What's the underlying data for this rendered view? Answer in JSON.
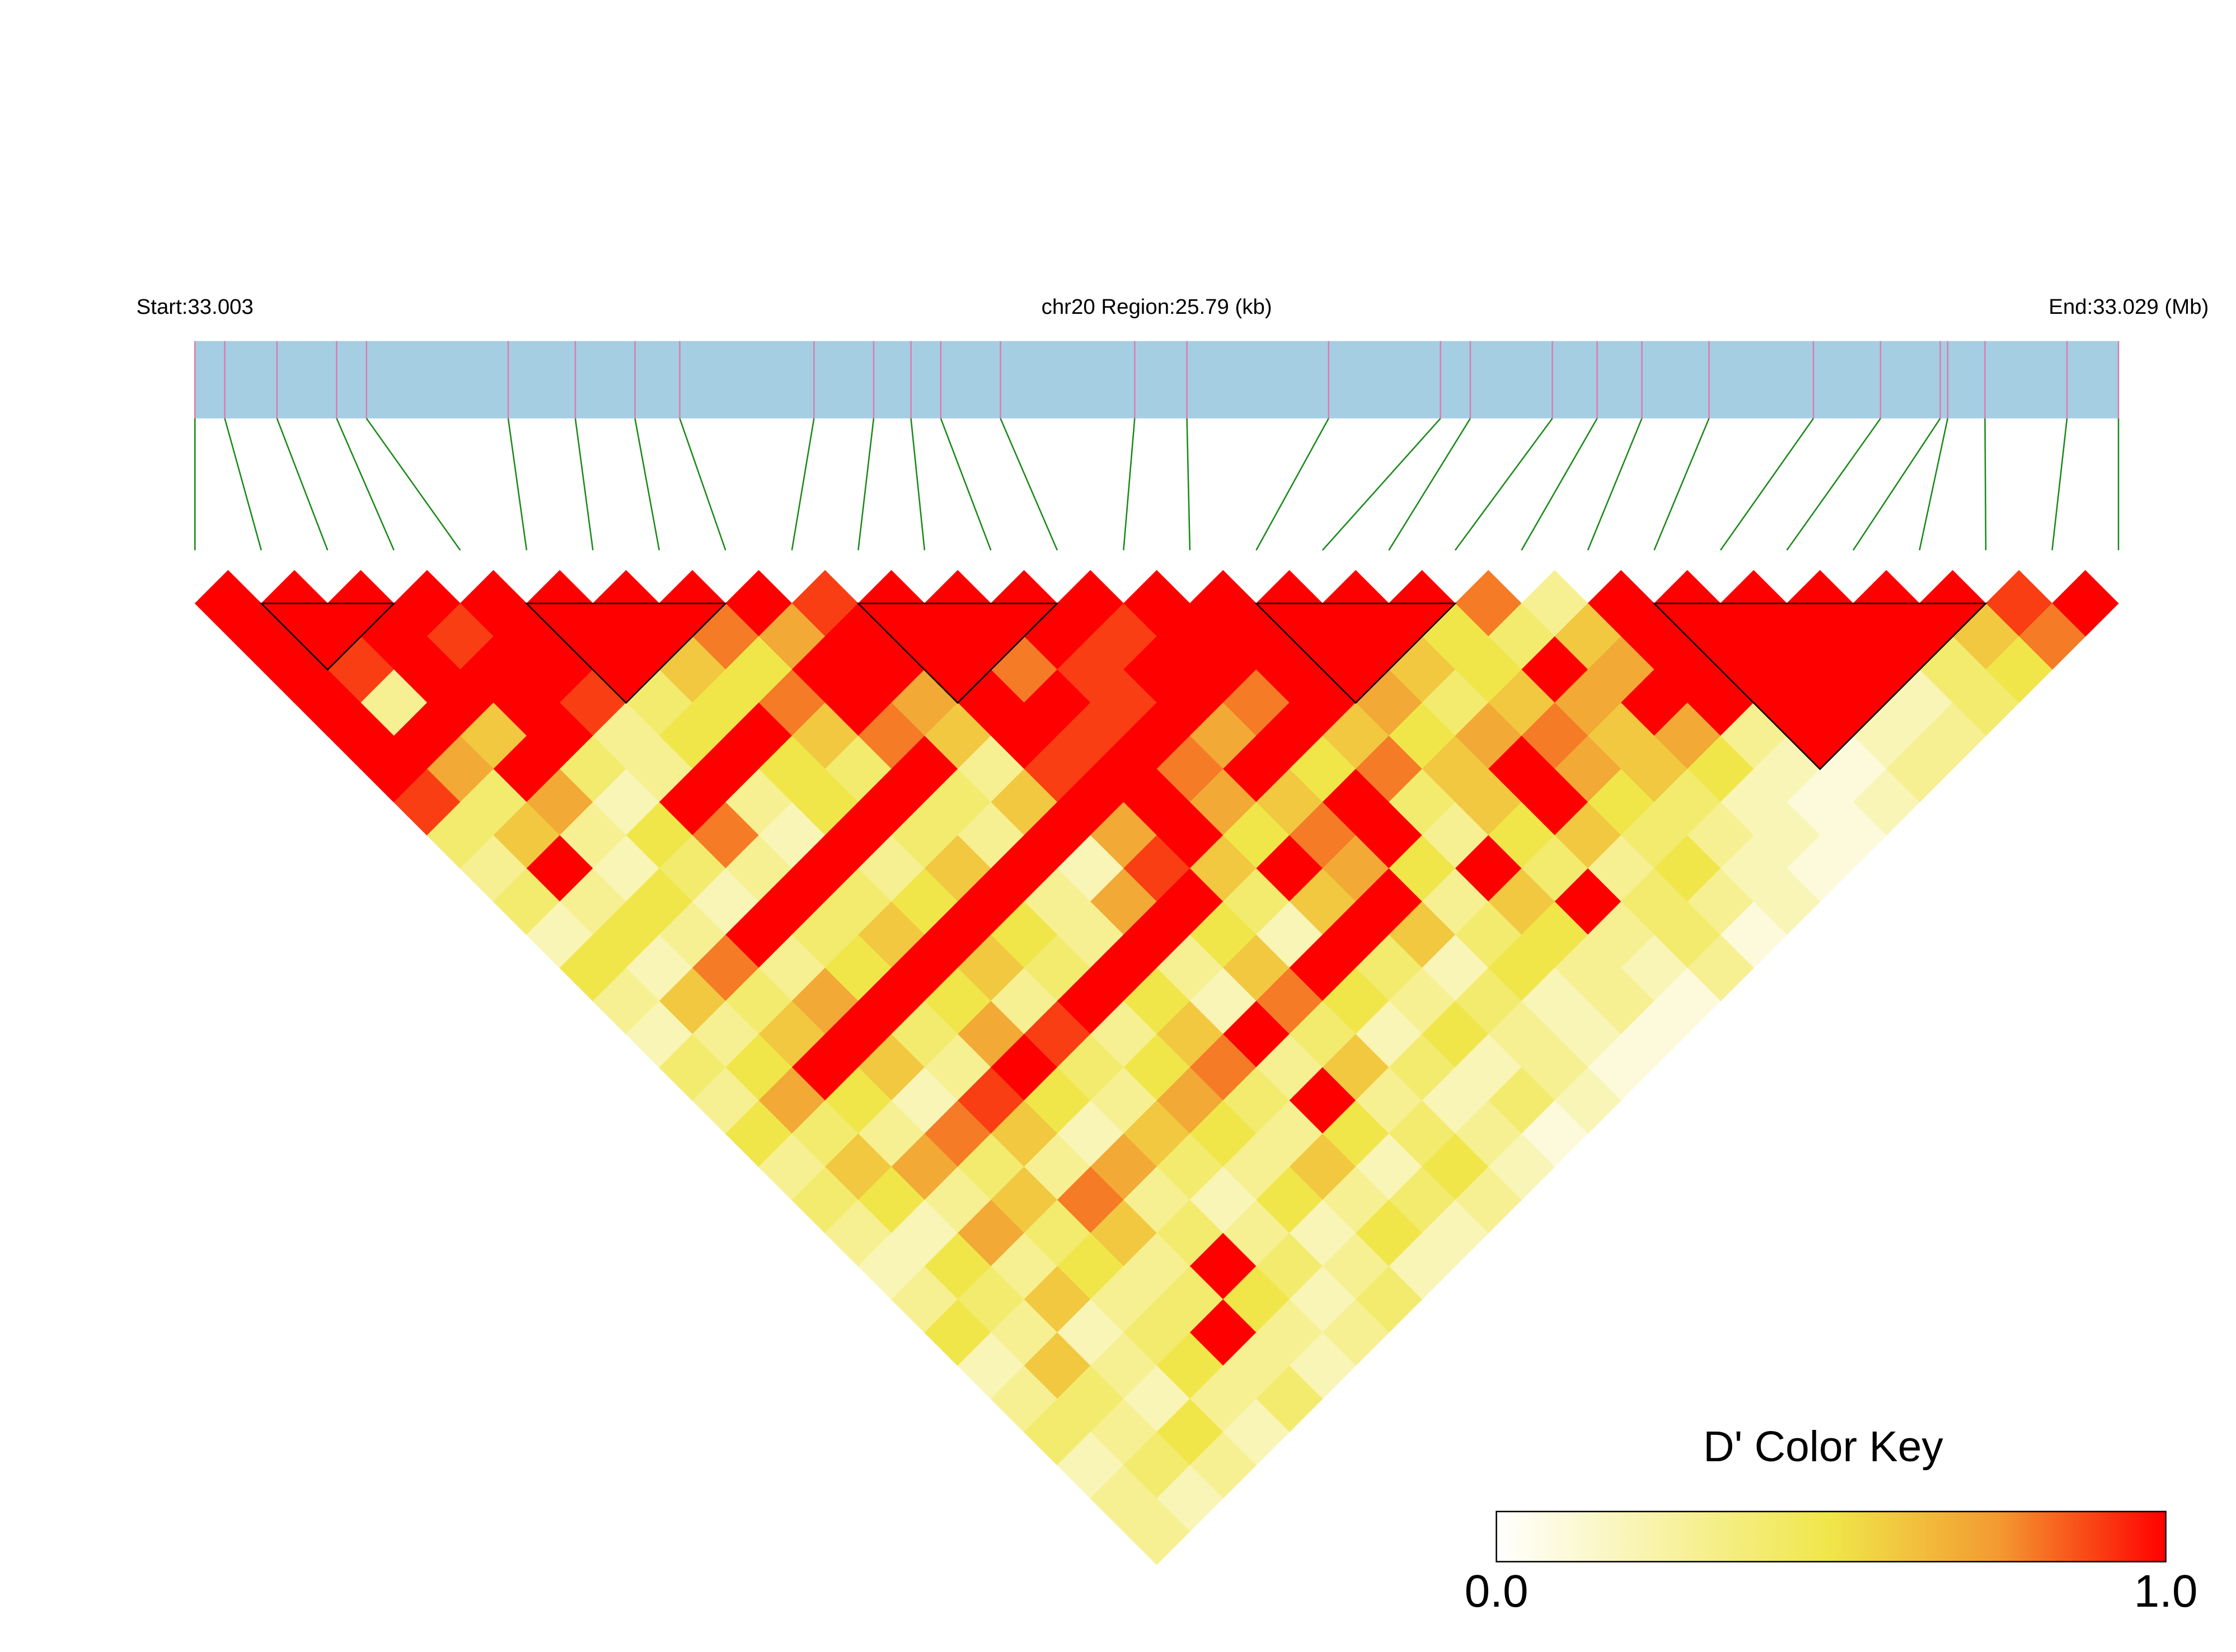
{
  "chart_data": {
    "type": "ld_heatmap",
    "start_label": "Start:33.003",
    "region_label": "chr20 Region:25.79 (kb)",
    "end_label": "End:33.029 (Mb)",
    "legend_title": "D' Color Key",
    "scale_lim": [
      0,
      1
    ],
    "scale_ticks": [
      {
        "value": 0,
        "label": "0.0"
      },
      {
        "value": 1,
        "label": "1.0"
      }
    ],
    "color_scale": [
      {
        "value": 0,
        "color": "#ffffff"
      },
      {
        "value": 0.5,
        "color": "#f0e64a"
      },
      {
        "value": 0.75,
        "color": "#f39a30"
      },
      {
        "value": 1,
        "color": "#ff0000"
      }
    ],
    "bar_color": "#a6cee3",
    "snp_line_color": "#d87fb0",
    "connector_color": "#1a8a1a",
    "block_outline_color": "#000000",
    "snp_positions": [
      33.003,
      33.0034,
      33.0041,
      33.0049,
      33.0053,
      33.0072,
      33.0081,
      33.0089,
      33.0095,
      33.0113,
      33.0121,
      33.0126,
      33.013,
      33.0138,
      33.0156,
      33.0163,
      33.0182,
      33.0197,
      33.0201,
      33.0212,
      33.0218,
      33.0224,
      33.0233,
      33.0247,
      33.0256,
      33.0264,
      33.0265,
      33.027,
      33.0281,
      33.02879
    ],
    "blocks": [
      [
        1,
        3
      ],
      [
        5,
        8
      ],
      [
        10,
        13
      ],
      [
        16,
        19
      ],
      [
        22,
        27
      ]
    ],
    "ld": [
      [
        1,
        1,
        1,
        1,
        1,
        1,
        1,
        1,
        1,
        0.9,
        1,
        1,
        1,
        1,
        1,
        1,
        1,
        1,
        1,
        0.8,
        0.3,
        1,
        1,
        1,
        1,
        1,
        1,
        0.9,
        1
      ],
      [
        1,
        1,
        1,
        0.9,
        1,
        1,
        1,
        0.8,
        0.7,
        1,
        1,
        1,
        1,
        0.9,
        1,
        1,
        1,
        1,
        0.5,
        0.4,
        0.6,
        1,
        1,
        1,
        1,
        1,
        0.6,
        0.8
      ],
      [
        1,
        0.9,
        1,
        1,
        1,
        1,
        0.6,
        0.5,
        1,
        1,
        1,
        0.8,
        0.9,
        1,
        1,
        1,
        1,
        0.6,
        0.5,
        1,
        0.7,
        1,
        1,
        1,
        1,
        0.4,
        0.5
      ],
      [
        1,
        0.3,
        1,
        1,
        0.9,
        0.4,
        0.5,
        0.8,
        1,
        0.7,
        1,
        1,
        0.9,
        1,
        0.8,
        1,
        0.7,
        0.4,
        0.6,
        0.7,
        1,
        1,
        1,
        1,
        0.2,
        0.4
      ],
      [
        1,
        1,
        0.6,
        1,
        0.3,
        0.5,
        1,
        0.6,
        0.8,
        0.6,
        1,
        0.9,
        1,
        0.7,
        1,
        0.6,
        0.5,
        0.7,
        0.8,
        0.6,
        0.7,
        0.3,
        1,
        0.2,
        0.3
      ],
      [
        1,
        0.7,
        1,
        0.4,
        0.3,
        1,
        0.5,
        0.4,
        1,
        0.3,
        0.9,
        1,
        0.8,
        1,
        0.5,
        0.8,
        0.6,
        1,
        0.7,
        0.6,
        0.5,
        0.2,
        0.1,
        0.3
      ],
      [
        0.9,
        0.4,
        0.7,
        0.2,
        1,
        0.3,
        0.5,
        1,
        0.4,
        0.6,
        1,
        1,
        0.7,
        0.6,
        1,
        0.4,
        0.6,
        1,
        0.5,
        0.4,
        0.2,
        0.1,
        0.2
      ],
      [
        0.4,
        0.6,
        0.3,
        0.5,
        0.8,
        0.2,
        1,
        0.4,
        0.3,
        1,
        0.7,
        1,
        0.5,
        0.8,
        1,
        0.3,
        0.5,
        0.6,
        0.4,
        0.3,
        0.2,
        0.1
      ],
      [
        0.3,
        1,
        0.2,
        0.4,
        0.3,
        1,
        0.3,
        0.6,
        1,
        0.2,
        0.9,
        0.6,
        1,
        0.7,
        0.5,
        1,
        0.4,
        0.3,
        0.5,
        0.2,
        0.1
      ],
      [
        0.4,
        0.3,
        0.5,
        0.2,
        1,
        0.4,
        0.5,
        1,
        0.3,
        0.7,
        1,
        0.4,
        0.6,
        1,
        0.3,
        0.6,
        1,
        0.4,
        0.3,
        0.2
      ],
      [
        0.2,
        0.5,
        0.3,
        1,
        0.4,
        0.6,
        1,
        0.5,
        0.3,
        1,
        0.5,
        0.2,
        1,
        0.6,
        0.4,
        0.5,
        0.3,
        0.4,
        0.1
      ],
      [
        0.5,
        0.2,
        0.8,
        0.3,
        0.5,
        1,
        0.6,
        0.4,
        1,
        0.3,
        0.6,
        1,
        0.4,
        0.2,
        0.5,
        0.3,
        0.2,
        0.3
      ],
      [
        0.3,
        0.6,
        0.4,
        0.7,
        1,
        0.5,
        0.3,
        1,
        0.5,
        0.2,
        0.8,
        0.5,
        0.3,
        0.4,
        0.2,
        0.3,
        0.1
      ],
      [
        0.2,
        0.3,
        0.6,
        1,
        0.4,
        0.7,
        0.9,
        0.3,
        0.6,
        1,
        0.4,
        0.2,
        0.5,
        0.3,
        0.2,
        0.1
      ],
      [
        0.4,
        0.5,
        1,
        0.6,
        0.3,
        1,
        0.4,
        0.5,
        0.8,
        0.3,
        0.6,
        0.4,
        0.2,
        0.3,
        0.1
      ],
      [
        0.3,
        0.7,
        0.5,
        0.2,
        0.9,
        0.5,
        0.3,
        0.7,
        0.4,
        1,
        0.3,
        0.2,
        0.4,
        0.2
      ],
      [
        0.5,
        0.4,
        0.3,
        0.8,
        0.6,
        0.2,
        0.6,
        0.5,
        0.3,
        0.5,
        0.4,
        0.3,
        0.1
      ],
      [
        0.3,
        0.6,
        0.7,
        0.4,
        0.3,
        0.7,
        0.4,
        0.3,
        0.6,
        0.2,
        0.5,
        0.2
      ],
      [
        0.4,
        0.5,
        0.3,
        0.6,
        0.8,
        0.3,
        0.2,
        0.5,
        0.3,
        0.4,
        0.3
      ],
      [
        0.3,
        0.2,
        0.7,
        0.4,
        0.6,
        0.4,
        0.3,
        0.2,
        0.5,
        0.2
      ],
      [
        0.2,
        0.5,
        0.3,
        0.5,
        0.3,
        1,
        0.4,
        0.3,
        0.2
      ],
      [
        0.3,
        0.4,
        0.6,
        0.3,
        0.4,
        0.5,
        0.2,
        0.4
      ],
      [
        0.5,
        0.3,
        0.2,
        0.4,
        1,
        0.3,
        0.3
      ],
      [
        0.2,
        0.6,
        0.3,
        0.5,
        0.3,
        0.2
      ],
      [
        0.3,
        0.4,
        0.2,
        0.3,
        0.4
      ],
      [
        0.4,
        0.3,
        0.5,
        0.2
      ],
      [
        0.2,
        0.4,
        0.3
      ],
      [
        0.3,
        0.2
      ],
      [
        0.3
      ]
    ]
  }
}
